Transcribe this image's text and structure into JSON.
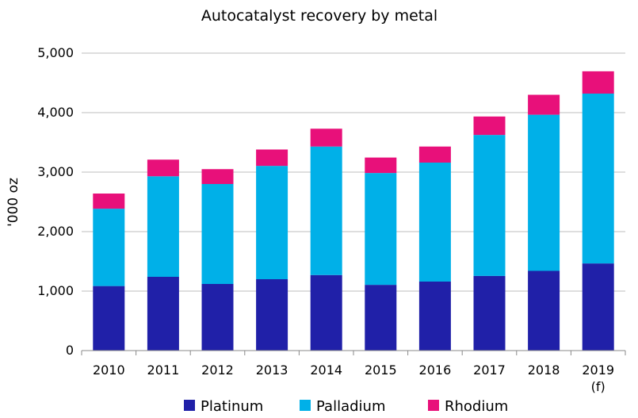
{
  "chart_data": {
    "type": "bar",
    "stacked": true,
    "title": "Autocatalyst recovery by metal",
    "xlabel": "",
    "ylabel": "'000 oz",
    "ylim": [
      0,
      5000
    ],
    "yticks": [
      "0",
      "1,000",
      "2,000",
      "3,000",
      "4,000",
      "5,000"
    ],
    "grid": true,
    "legend_position": "bottom",
    "categories": [
      "2010",
      "2011",
      "2012",
      "2013",
      "2014",
      "2015",
      "2016",
      "2017",
      "2018",
      "2019 (f)"
    ],
    "category_lines": [
      [
        "2010"
      ],
      [
        "2011"
      ],
      [
        "2012"
      ],
      [
        "2013"
      ],
      [
        "2014"
      ],
      [
        "2015"
      ],
      [
        "2016"
      ],
      [
        "2017"
      ],
      [
        "2018"
      ],
      [
        "2019",
        "(f)"
      ]
    ],
    "series": [
      {
        "name": "Platinum",
        "color": "#2020a8",
        "values": [
          1085,
          1240,
          1120,
          1200,
          1270,
          1105,
          1160,
          1255,
          1340,
          1465
        ]
      },
      {
        "name": "Palladium",
        "color": "#00b0e8",
        "values": [
          1300,
          1690,
          1680,
          1905,
          2160,
          1880,
          2000,
          2370,
          2625,
          2855
        ]
      },
      {
        "name": "Rhodium",
        "color": "#e8107a",
        "values": [
          255,
          280,
          250,
          275,
          300,
          260,
          270,
          310,
          335,
          375
        ]
      }
    ]
  }
}
